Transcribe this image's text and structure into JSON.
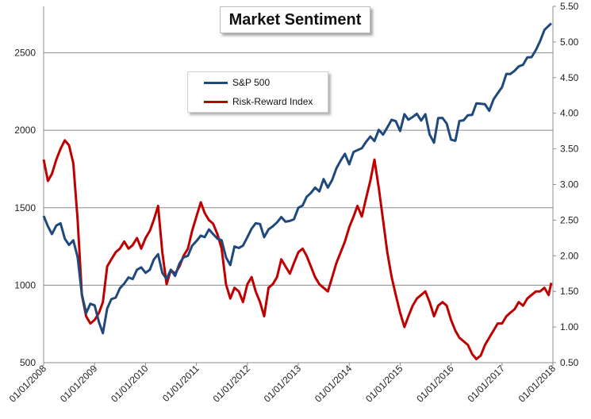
{
  "chart_data": {
    "type": "line",
    "title": "Market Sentiment",
    "xlabel": "",
    "ylabel_left": "",
    "ylabel_right": "",
    "x_ticks": [
      "01/01/2008",
      "01/01/2009",
      "01/01/2010",
      "01/01/2011",
      "01/01/2012",
      "01/01/2013",
      "01/01/2014",
      "01/01/2015",
      "01/01/2016",
      "01/01/2017",
      "01/01/2018"
    ],
    "y_left": {
      "ticks": [
        "500",
        "1000",
        "1500",
        "2000",
        "2500"
      ],
      "lim": [
        500,
        2800
      ]
    },
    "y_right": {
      "ticks": [
        "0.50",
        "1.00",
        "1.50",
        "2.00",
        "2.50",
        "3.00",
        "3.50",
        "4.00",
        "4.50",
        "5.00",
        "5.50"
      ],
      "lim": [
        0.5,
        5.5
      ]
    },
    "grid": "horizontal major (left axis)",
    "legend_position": "top-left",
    "series": [
      {
        "name": "S&P 500",
        "axis": "left",
        "color": "#1f497d",
        "points": [
          [
            "2008-01-01",
            1447
          ],
          [
            "2008-02-01",
            1380
          ],
          [
            "2008-03-01",
            1330
          ],
          [
            "2008-04-01",
            1385
          ],
          [
            "2008-05-01",
            1400
          ],
          [
            "2008-06-01",
            1300
          ],
          [
            "2008-07-01",
            1260
          ],
          [
            "2008-08-01",
            1290
          ],
          [
            "2008-09-01",
            1180
          ],
          [
            "2008-10-01",
            940
          ],
          [
            "2008-11-01",
            820
          ],
          [
            "2008-12-01",
            880
          ],
          [
            "2009-01-01",
            870
          ],
          [
            "2009-02-01",
            760
          ],
          [
            "2009-03-01",
            690
          ],
          [
            "2009-04-01",
            850
          ],
          [
            "2009-05-01",
            910
          ],
          [
            "2009-06-01",
            920
          ],
          [
            "2009-07-01",
            980
          ],
          [
            "2009-08-01",
            1010
          ],
          [
            "2009-09-01",
            1050
          ],
          [
            "2009-10-01",
            1040
          ],
          [
            "2009-11-01",
            1100
          ],
          [
            "2009-12-01",
            1115
          ],
          [
            "2010-01-01",
            1080
          ],
          [
            "2010-02-01",
            1100
          ],
          [
            "2010-03-01",
            1165
          ],
          [
            "2010-04-01",
            1200
          ],
          [
            "2010-05-01",
            1080
          ],
          [
            "2010-06-01",
            1040
          ],
          [
            "2010-07-01",
            1100
          ],
          [
            "2010-08-01",
            1060
          ],
          [
            "2010-09-01",
            1140
          ],
          [
            "2010-10-01",
            1180
          ],
          [
            "2010-11-01",
            1190
          ],
          [
            "2010-12-01",
            1255
          ],
          [
            "2011-01-01",
            1285
          ],
          [
            "2011-02-01",
            1320
          ],
          [
            "2011-03-01",
            1310
          ],
          [
            "2011-04-01",
            1360
          ],
          [
            "2011-05-01",
            1330
          ],
          [
            "2011-06-01",
            1300
          ],
          [
            "2011-07-01",
            1290
          ],
          [
            "2011-08-01",
            1180
          ],
          [
            "2011-09-01",
            1130
          ],
          [
            "2011-10-01",
            1250
          ],
          [
            "2011-11-01",
            1240
          ],
          [
            "2011-12-01",
            1255
          ],
          [
            "2012-01-01",
            1310
          ],
          [
            "2012-02-01",
            1365
          ],
          [
            "2012-03-01",
            1400
          ],
          [
            "2012-04-01",
            1395
          ],
          [
            "2012-05-01",
            1310
          ],
          [
            "2012-06-01",
            1360
          ],
          [
            "2012-07-01",
            1380
          ],
          [
            "2012-08-01",
            1405
          ],
          [
            "2012-09-01",
            1440
          ],
          [
            "2012-10-01",
            1410
          ],
          [
            "2012-11-01",
            1415
          ],
          [
            "2012-12-01",
            1426
          ],
          [
            "2013-01-01",
            1500
          ],
          [
            "2013-02-01",
            1515
          ],
          [
            "2013-03-01",
            1570
          ],
          [
            "2013-04-01",
            1595
          ],
          [
            "2013-05-01",
            1630
          ],
          [
            "2013-06-01",
            1605
          ],
          [
            "2013-07-01",
            1685
          ],
          [
            "2013-08-01",
            1630
          ],
          [
            "2013-09-01",
            1680
          ],
          [
            "2013-10-01",
            1755
          ],
          [
            "2013-11-01",
            1805
          ],
          [
            "2013-12-01",
            1848
          ],
          [
            "2014-01-01",
            1780
          ],
          [
            "2014-02-01",
            1860
          ],
          [
            "2014-03-01",
            1872
          ],
          [
            "2014-04-01",
            1884
          ],
          [
            "2014-05-01",
            1924
          ],
          [
            "2014-06-01",
            1960
          ],
          [
            "2014-07-01",
            1930
          ],
          [
            "2014-08-01",
            2003
          ],
          [
            "2014-09-01",
            1972
          ],
          [
            "2014-10-01",
            2018
          ],
          [
            "2014-11-01",
            2068
          ],
          [
            "2014-12-01",
            2059
          ],
          [
            "2015-01-01",
            1995
          ],
          [
            "2015-02-01",
            2104
          ],
          [
            "2015-03-01",
            2068
          ],
          [
            "2015-04-01",
            2086
          ],
          [
            "2015-05-01",
            2107
          ],
          [
            "2015-06-01",
            2063
          ],
          [
            "2015-07-01",
            2104
          ],
          [
            "2015-08-01",
            1972
          ],
          [
            "2015-09-01",
            1920
          ],
          [
            "2015-10-01",
            2079
          ],
          [
            "2015-11-01",
            2080
          ],
          [
            "2015-12-01",
            2044
          ],
          [
            "2016-01-01",
            1940
          ],
          [
            "2016-02-01",
            1932
          ],
          [
            "2016-03-01",
            2060
          ],
          [
            "2016-04-01",
            2065
          ],
          [
            "2016-05-01",
            2097
          ],
          [
            "2016-06-01",
            2099
          ],
          [
            "2016-07-01",
            2174
          ],
          [
            "2016-08-01",
            2171
          ],
          [
            "2016-09-01",
            2168
          ],
          [
            "2016-10-01",
            2126
          ],
          [
            "2016-11-01",
            2199
          ],
          [
            "2016-12-01",
            2239
          ],
          [
            "2017-01-01",
            2279
          ],
          [
            "2017-02-01",
            2364
          ],
          [
            "2017-03-01",
            2363
          ],
          [
            "2017-04-01",
            2384
          ],
          [
            "2017-05-01",
            2412
          ],
          [
            "2017-06-01",
            2423
          ],
          [
            "2017-07-01",
            2470
          ],
          [
            "2017-08-01",
            2472
          ],
          [
            "2017-09-01",
            2519
          ],
          [
            "2017-10-01",
            2575
          ],
          [
            "2017-11-01",
            2648
          ],
          [
            "2017-12-01",
            2674
          ],
          [
            "2017-12-20",
            2690
          ]
        ]
      },
      {
        "name": "Risk-Reward Index",
        "axis": "right",
        "color": "#c00000",
        "points": [
          [
            "2008-01-01",
            3.35
          ],
          [
            "2008-02-01",
            3.05
          ],
          [
            "2008-03-01",
            3.15
          ],
          [
            "2008-04-01",
            3.35
          ],
          [
            "2008-05-01",
            3.5
          ],
          [
            "2008-06-01",
            3.62
          ],
          [
            "2008-07-01",
            3.55
          ],
          [
            "2008-08-01",
            3.3
          ],
          [
            "2008-09-01",
            2.5
          ],
          [
            "2008-10-01",
            1.45
          ],
          [
            "2008-11-01",
            1.15
          ],
          [
            "2008-12-01",
            1.05
          ],
          [
            "2009-01-01",
            1.1
          ],
          [
            "2009-02-01",
            1.2
          ],
          [
            "2009-03-01",
            1.35
          ],
          [
            "2009-04-01",
            1.85
          ],
          [
            "2009-05-01",
            1.95
          ],
          [
            "2009-06-01",
            2.05
          ],
          [
            "2009-07-01",
            2.1
          ],
          [
            "2009-08-01",
            2.2
          ],
          [
            "2009-09-01",
            2.1
          ],
          [
            "2009-10-01",
            2.15
          ],
          [
            "2009-11-01",
            2.25
          ],
          [
            "2009-12-01",
            2.1
          ],
          [
            "2010-01-01",
            2.25
          ],
          [
            "2010-02-01",
            2.35
          ],
          [
            "2010-03-01",
            2.5
          ],
          [
            "2010-04-01",
            2.7
          ],
          [
            "2010-05-01",
            2.05
          ],
          [
            "2010-06-01",
            1.6
          ],
          [
            "2010-07-01",
            1.8
          ],
          [
            "2010-08-01",
            1.75
          ],
          [
            "2010-09-01",
            1.85
          ],
          [
            "2010-10-01",
            2.0
          ],
          [
            "2010-11-01",
            2.1
          ],
          [
            "2010-12-01",
            2.35
          ],
          [
            "2011-01-01",
            2.55
          ],
          [
            "2011-02-01",
            2.75
          ],
          [
            "2011-03-01",
            2.6
          ],
          [
            "2011-04-01",
            2.5
          ],
          [
            "2011-05-01",
            2.45
          ],
          [
            "2011-06-01",
            2.3
          ],
          [
            "2011-07-01",
            2.1
          ],
          [
            "2011-08-01",
            1.6
          ],
          [
            "2011-09-01",
            1.4
          ],
          [
            "2011-10-01",
            1.55
          ],
          [
            "2011-11-01",
            1.5
          ],
          [
            "2011-12-01",
            1.35
          ],
          [
            "2012-01-01",
            1.6
          ],
          [
            "2012-02-01",
            1.7
          ],
          [
            "2012-03-01",
            1.5
          ],
          [
            "2012-04-01",
            1.35
          ],
          [
            "2012-05-01",
            1.15
          ],
          [
            "2012-06-01",
            1.55
          ],
          [
            "2012-07-01",
            1.6
          ],
          [
            "2012-08-01",
            1.7
          ],
          [
            "2012-09-01",
            1.95
          ],
          [
            "2012-10-01",
            1.85
          ],
          [
            "2012-11-01",
            1.75
          ],
          [
            "2012-12-01",
            1.9
          ],
          [
            "2013-01-01",
            2.05
          ],
          [
            "2013-02-01",
            2.1
          ],
          [
            "2013-03-01",
            2.0
          ],
          [
            "2013-04-01",
            1.85
          ],
          [
            "2013-05-01",
            1.7
          ],
          [
            "2013-06-01",
            1.6
          ],
          [
            "2013-07-01",
            1.55
          ],
          [
            "2013-08-01",
            1.5
          ],
          [
            "2013-09-01",
            1.7
          ],
          [
            "2013-10-01",
            1.9
          ],
          [
            "2013-11-01",
            2.05
          ],
          [
            "2013-12-01",
            2.2
          ],
          [
            "2014-01-01",
            2.4
          ],
          [
            "2014-02-01",
            2.55
          ],
          [
            "2014-03-01",
            2.7
          ],
          [
            "2014-04-01",
            2.55
          ],
          [
            "2014-05-01",
            2.8
          ],
          [
            "2014-06-01",
            3.05
          ],
          [
            "2014-07-01",
            3.35
          ],
          [
            "2014-08-01",
            2.95
          ],
          [
            "2014-09-01",
            2.5
          ],
          [
            "2014-10-01",
            2.05
          ],
          [
            "2014-11-01",
            1.7
          ],
          [
            "2014-12-01",
            1.45
          ],
          [
            "2015-01-01",
            1.2
          ],
          [
            "2015-02-01",
            1.0
          ],
          [
            "2015-03-01",
            1.15
          ],
          [
            "2015-04-01",
            1.3
          ],
          [
            "2015-05-01",
            1.4
          ],
          [
            "2015-06-01",
            1.45
          ],
          [
            "2015-07-01",
            1.5
          ],
          [
            "2015-08-01",
            1.35
          ],
          [
            "2015-09-01",
            1.15
          ],
          [
            "2015-10-01",
            1.3
          ],
          [
            "2015-11-01",
            1.35
          ],
          [
            "2015-12-01",
            1.3
          ],
          [
            "2016-01-01",
            1.1
          ],
          [
            "2016-02-01",
            0.95
          ],
          [
            "2016-03-01",
            0.85
          ],
          [
            "2016-04-01",
            0.8
          ],
          [
            "2016-05-01",
            0.75
          ],
          [
            "2016-06-01",
            0.62
          ],
          [
            "2016-07-01",
            0.55
          ],
          [
            "2016-08-01",
            0.6
          ],
          [
            "2016-09-01",
            0.75
          ],
          [
            "2016-10-01",
            0.85
          ],
          [
            "2016-11-01",
            0.95
          ],
          [
            "2016-12-01",
            1.05
          ],
          [
            "2017-01-01",
            1.05
          ],
          [
            "2017-02-01",
            1.15
          ],
          [
            "2017-03-01",
            1.2
          ],
          [
            "2017-04-01",
            1.25
          ],
          [
            "2017-05-01",
            1.35
          ],
          [
            "2017-06-01",
            1.3
          ],
          [
            "2017-07-01",
            1.4
          ],
          [
            "2017-08-01",
            1.45
          ],
          [
            "2017-09-01",
            1.5
          ],
          [
            "2017-10-01",
            1.5
          ],
          [
            "2017-11-01",
            1.55
          ],
          [
            "2017-12-01",
            1.45
          ],
          [
            "2017-12-20",
            1.62
          ]
        ]
      }
    ]
  }
}
